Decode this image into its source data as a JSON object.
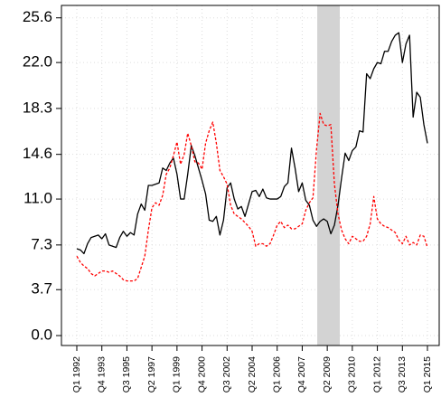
{
  "chart_data": {
    "type": "line",
    "categories": [
      "Q1 1992",
      null,
      null,
      null,
      null,
      null,
      null,
      "Q4 1993",
      null,
      null,
      null,
      null,
      null,
      null,
      "Q3 1995",
      null,
      null,
      null,
      null,
      null,
      null,
      "Q2 1997",
      null,
      null,
      null,
      null,
      null,
      null,
      "Q1 1999",
      null,
      null,
      null,
      null,
      null,
      null,
      "Q4 2000",
      null,
      null,
      null,
      null,
      null,
      null,
      "Q3 2002",
      null,
      null,
      null,
      null,
      null,
      null,
      "Q2 2004",
      null,
      null,
      null,
      null,
      null,
      null,
      "Q1 2006",
      null,
      null,
      null,
      null,
      null,
      null,
      "Q4 2007",
      null,
      null,
      null,
      null,
      null,
      null,
      "Q2 2009",
      null,
      null,
      null,
      null,
      null,
      null,
      "Q3 2010",
      null,
      null,
      null,
      null,
      null,
      null,
      "Q1 2012",
      null,
      null,
      null,
      null,
      null,
      null,
      "Q3 2013",
      null,
      null,
      null,
      null,
      null,
      null,
      "Q1 2015"
    ],
    "series": [
      {
        "color": "#000000",
        "dashed": false,
        "values": [
          7.0,
          6.9,
          6.6,
          7.4,
          7.9,
          8.0,
          8.1,
          7.8,
          8.2,
          7.3,
          7.2,
          7.1,
          7.9,
          8.4,
          8.0,
          8.3,
          8.1,
          9.8,
          10.6,
          10.1,
          12.1,
          12.1,
          12.2,
          12.3,
          13.5,
          13.3,
          13.9,
          14.3,
          13.0,
          11.0,
          11.0,
          13.0,
          15.3,
          14.5,
          13.5,
          12.5,
          11.4,
          9.3,
          9.2,
          9.6,
          8.1,
          9.3,
          11.9,
          12.3,
          11.0,
          10.2,
          10.4,
          9.6,
          10.6,
          11.6,
          11.7,
          11.2,
          11.8,
          11.1,
          11.0,
          11.0,
          11.0,
          11.2,
          12.0,
          12.3,
          15.1,
          13.5,
          11.6,
          12.3,
          10.9,
          10.5,
          9.3,
          8.8,
          9.2,
          9.4,
          9.2,
          8.2,
          8.9,
          10.5,
          12.7,
          14.7,
          14.1,
          14.9,
          15.2,
          16.5,
          16.4,
          21.1,
          20.7,
          21.5,
          22.0,
          21.9,
          22.9,
          22.9,
          23.7,
          24.2,
          24.4,
          22.0,
          23.5,
          24.2,
          17.6,
          19.6,
          19.2,
          17.0,
          15.5
        ]
      },
      {
        "color": "#ff0000",
        "dashed": true,
        "values": [
          6.4,
          5.9,
          5.6,
          5.4,
          5.0,
          4.8,
          5.0,
          5.2,
          5.2,
          5.1,
          5.2,
          5.0,
          4.8,
          4.5,
          4.4,
          4.4,
          4.4,
          4.6,
          5.5,
          6.4,
          8.5,
          10.3,
          10.7,
          10.5,
          11.3,
          13.0,
          13.5,
          14.5,
          15.6,
          13.8,
          14.6,
          16.3,
          15.3,
          14.0,
          13.9,
          13.4,
          15.5,
          16.5,
          17.2,
          15.5,
          13.3,
          12.8,
          12.2,
          10.5,
          9.8,
          9.6,
          9.4,
          9.1,
          8.8,
          8.4,
          7.2,
          7.4,
          7.4,
          7.2,
          7.4,
          8.1,
          8.9,
          9.2,
          8.7,
          8.9,
          8.6,
          8.6,
          8.8,
          9.0,
          10.1,
          10.7,
          11.1,
          15.0,
          17.9,
          17.0,
          16.9,
          17.0,
          12.2,
          9.8,
          8.5,
          7.8,
          7.4,
          8.0,
          7.8,
          7.6,
          7.6,
          8.0,
          9.0,
          11.2,
          9.4,
          9.0,
          8.8,
          8.7,
          8.5,
          8.3,
          7.7,
          7.4,
          8.0,
          7.3,
          7.5,
          7.3,
          8.1,
          8.0,
          7.1
        ]
      }
    ],
    "ylim": [
      -0.8,
      26.6
    ],
    "yticks": [
      {
        "value": 0,
        "label": "0.0"
      },
      3.7,
      7.3,
      {
        "value": 11,
        "label": "11.0"
      },
      14.6,
      18.3,
      {
        "value": 22,
        "label": "22.0"
      },
      25.6
    ],
    "shade": [
      67.2,
      73.5
    ],
    "shade_color": "#d3d3d3",
    "grid": true
  }
}
